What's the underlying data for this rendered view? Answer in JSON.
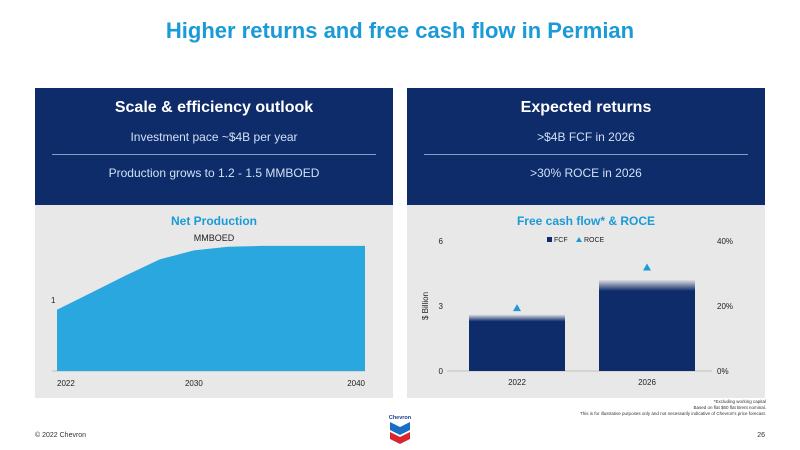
{
  "title": "Higher returns and free cash flow in Permian",
  "left_panel": {
    "heading": "Scale & efficiency outlook",
    "line1": "Investment pace ~$4B per year",
    "line2": "Production grows to 1.2 - 1.5 MMBOED"
  },
  "right_panel": {
    "heading": "Expected returns",
    "line1": ">$4B FCF in 2026",
    "line2": ">30% ROCE in 2026"
  },
  "colors": {
    "navy": "#0e2b6a",
    "light_blue": "#1a9ad6",
    "area": "#2aa7df",
    "panel_bg": "#e8e8e8"
  },
  "chart_data": [
    {
      "type": "area",
      "title": "Net Production",
      "ylabel": "MMBOED",
      "y_tick_labels": [
        "1"
      ],
      "x_tick_labels": [
        "2022",
        "2030",
        "2040"
      ],
      "x": [
        2022,
        2024,
        2026,
        2028,
        2030,
        2032,
        2034,
        2036,
        2038,
        2040
      ],
      "values": [
        0.68,
        0.87,
        1.06,
        1.24,
        1.34,
        1.38,
        1.39,
        1.39,
        1.39,
        1.39
      ],
      "ylim": [
        0,
        2
      ]
    },
    {
      "type": "bar",
      "title": "Free cash flow* & ROCE",
      "ylabel": "$ Billion",
      "categories": [
        "2022",
        "2026"
      ],
      "y_ticks_left": [
        "0",
        "3",
        "6"
      ],
      "y_ticks_right": [
        "0%",
        "20%",
        "40%"
      ],
      "ylim": [
        0,
        6
      ],
      "ylim_right": [
        0,
        40
      ],
      "legend": {
        "fcf": "FCF",
        "roce": "ROCE",
        "position": "top"
      },
      "series": [
        {
          "name": "FCF",
          "type": "bar",
          "values": [
            2.6,
            4.2
          ]
        },
        {
          "name": "ROCE",
          "type": "marker",
          "values": [
            19.5,
            32
          ]
        }
      ]
    }
  ],
  "footnotes": [
    "*Excluding working capital",
    "Based on flat $60 flat Brent nominal.",
    "This is for illustrative purposes only and not necessarily indicative of Chevron's price forecast."
  ],
  "logo": {
    "text": "Chevron"
  },
  "footer": {
    "copyright": "© 2022 Chevron",
    "page": "26"
  }
}
